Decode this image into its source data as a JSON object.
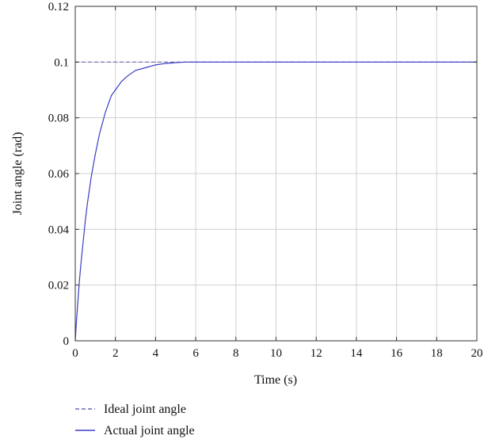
{
  "chart_data": {
    "type": "line",
    "title": "",
    "xlabel": "Time (s)",
    "ylabel": "Joint angle (rad)",
    "xlim": [
      0,
      20
    ],
    "ylim": [
      0,
      0.12
    ],
    "xticks": [
      0,
      2,
      4,
      6,
      8,
      10,
      12,
      14,
      16,
      18,
      20
    ],
    "yticks": [
      0,
      0.02,
      0.04,
      0.06,
      0.08,
      0.1,
      0.12
    ],
    "xtick_labels": [
      "0",
      "2",
      "4",
      "6",
      "8",
      "10",
      "12",
      "14",
      "16",
      "18",
      "20"
    ],
    "ytick_labels": [
      "0",
      "0.02",
      "0.04",
      "0.06",
      "0.08",
      "0.1",
      "0.12"
    ],
    "grid": true,
    "legend": {
      "placement": "below"
    },
    "series": [
      {
        "name": "Ideal joint angle",
        "style": "dashed",
        "color": "#6a6ab8",
        "x": [
          0,
          20
        ],
        "y": [
          0.1,
          0.1
        ]
      },
      {
        "name": "Actual joint angle",
        "style": "solid",
        "color": "#3c3cc8",
        "x": [
          0,
          0.05,
          0.1,
          0.2,
          0.3,
          0.4,
          0.5,
          0.6,
          0.8,
          1.0,
          1.2,
          1.5,
          1.8,
          2.0,
          2.3,
          2.6,
          3.0,
          3.5,
          4.0,
          4.5,
          5.0,
          5.5,
          6.0,
          7.0,
          8.0,
          10.0,
          12.0,
          14.0,
          16.0,
          18.0,
          20.0
        ],
        "y": [
          0.0,
          0.006,
          0.011,
          0.021,
          0.029,
          0.036,
          0.043,
          0.049,
          0.059,
          0.067,
          0.074,
          0.082,
          0.088,
          0.09,
          0.093,
          0.095,
          0.097,
          0.098,
          0.099,
          0.0995,
          0.0998,
          0.1,
          0.1,
          0.1,
          0.1,
          0.1,
          0.1,
          0.1,
          0.1,
          0.1,
          0.1
        ]
      }
    ]
  }
}
